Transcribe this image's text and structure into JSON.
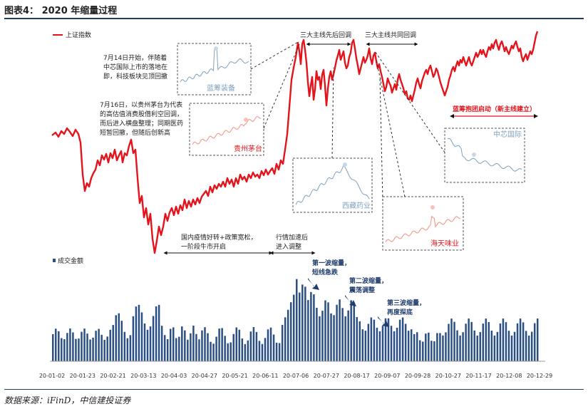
{
  "header": {
    "title": "图表4：  2020 年缩量过程"
  },
  "footer": {
    "source": "数据来源：iFinD，中信建投证券"
  },
  "colors": {
    "index": "#e4141c",
    "volume": "#2a4f85",
    "inset_blue": "#7fa1bd",
    "inset_red": "#f29083",
    "arrow": "#1f3d6b"
  },
  "chart_data": [
    {
      "type": "line",
      "series": [
        {
          "name": "上证指数"
        }
      ],
      "legend_position": "top-left",
      "annotations": [
        {
          "text": [
            "7月14日开始，伴随着",
            "中芯国际上市的落地在",
            "即，科技板块见顶回撤"
          ]
        },
        {
          "text": [
            "7月16日，以贵州茅台为代表",
            "的高估值消费股借利空回调，",
            "而后进入横盘整理；同期医药",
            "短暂回撤，但随后创新高"
          ]
        },
        {
          "text": [
            "三大主线先后回调"
          ]
        },
        {
          "text": [
            "三大主线共同回调"
          ]
        },
        {
          "text": [
            "蓝筹抱团启动（新主线建立）"
          ]
        },
        {
          "text": [
            "国内疫情好转+政策宽松，",
            "一阶段牛市开启"
          ]
        },
        {
          "text": [
            "行情加速后",
            "进入调整"
          ]
        }
      ],
      "insets": [
        {
          "label": "蓝筹装备"
        },
        {
          "label": "贵州茅台"
        },
        {
          "label": "中芯国际"
        },
        {
          "label": "西藏药业"
        },
        {
          "label": "海天味业"
        }
      ]
    },
    {
      "type": "bar",
      "series": [
        {
          "name": "成交金额"
        }
      ],
      "x_tick_labels": [
        "20-01-02",
        "20-01-23",
        "20-02-21",
        "20-03-13",
        "20-04-03",
        "20-04-27",
        "20-05-21",
        "20-06-11",
        "20-07-06",
        "20-07-27",
        "20-08-17",
        "20-09-07",
        "20-09-28",
        "20-10-27",
        "20-11-17",
        "20-12-08",
        "20-12-29"
      ],
      "annotations": [
        {
          "text": [
            "第一波缩量，",
            "短线急跌"
          ]
        },
        {
          "text": [
            "第二波缩量，",
            "震荡调整"
          ]
        },
        {
          "text": [
            "第三波缩量，",
            "再度探底"
          ]
        }
      ]
    }
  ]
}
